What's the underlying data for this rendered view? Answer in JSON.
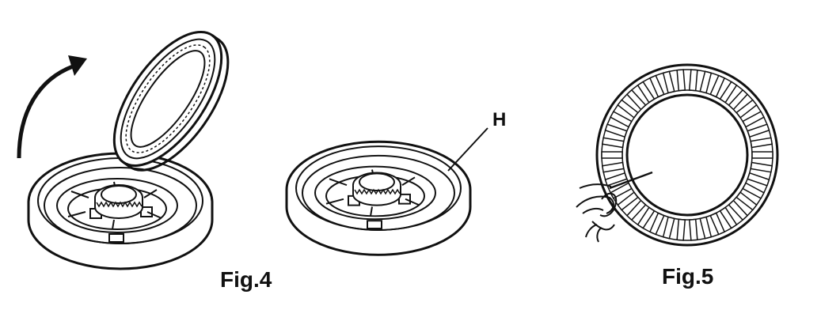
{
  "figures": {
    "fig4": {
      "caption": "Fig.4",
      "callout": "H"
    },
    "fig5": {
      "caption": "Fig.5"
    }
  },
  "colors": {
    "ink": "#111111",
    "paper": "#ffffff"
  }
}
